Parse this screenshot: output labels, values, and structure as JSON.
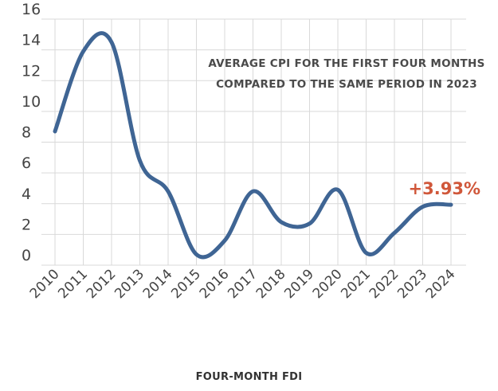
{
  "chart_data": {
    "type": "line",
    "title_lines": [
      "AVERAGE CPI FOR THE FIRST FOUR MONTHS",
      "COMPARED TO THE SAME PERIOD IN 2023"
    ],
    "xlabel": "FOUR-MONTH FDI",
    "ylabel": "",
    "x": [
      "2010",
      "2011",
      "2012",
      "2013",
      "2014",
      "2015",
      "2016",
      "2017",
      "2018",
      "2019",
      "2020",
      "2021",
      "2022",
      "2023",
      "2024"
    ],
    "series": [
      {
        "values": [
          8.7,
          13.9,
          14.5,
          6.8,
          4.8,
          0.7,
          1.6,
          4.8,
          2.8,
          2.7,
          4.9,
          0.8,
          2.1,
          3.8,
          3.93
        ]
      }
    ],
    "ylim": [
      0,
      16
    ],
    "yticks": [
      0,
      2,
      4,
      6,
      8,
      10,
      12,
      14,
      16
    ],
    "grid": true,
    "annotation": {
      "text": "+3.93%",
      "at_x": "2024"
    },
    "colors": {
      "line": "#3f6594",
      "grid": "#d9d9d9",
      "annotation": "#d0573a"
    }
  }
}
